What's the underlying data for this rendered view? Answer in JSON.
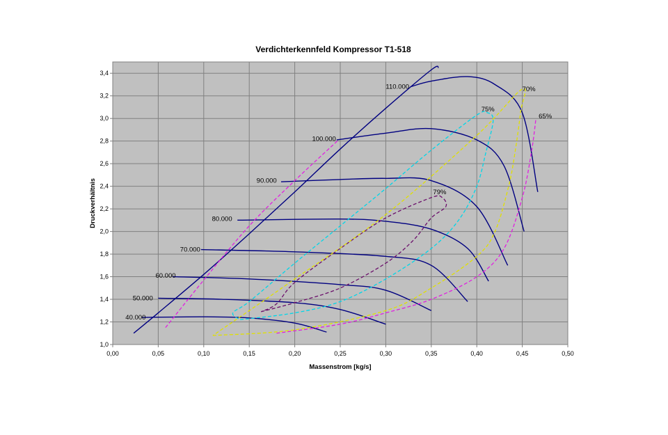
{
  "chart_data": {
    "type": "line",
    "title": "Verdichterkennfeld Kompressor T1-518",
    "xlabel": "Massenstrom [kg/s]",
    "ylabel": "Druckverhältnis",
    "xlim": [
      0.0,
      0.5
    ],
    "ylim": [
      1.0,
      3.5
    ],
    "x_ticks": [
      "0,00",
      "0,05",
      "0,10",
      "0,15",
      "0,20",
      "0,25",
      "0,30",
      "0,35",
      "0,40",
      "0,45",
      "0,50"
    ],
    "y_ticks": [
      "1,0",
      "1,2",
      "1,4",
      "1,6",
      "1,8",
      "2,0",
      "2,2",
      "2,4",
      "2,6",
      "2,8",
      "3,0",
      "3,2",
      "3,4"
    ],
    "grid": true,
    "background_color": "#c0c0c0",
    "speed_line_color": "#000080",
    "surge_line": {
      "points": [
        [
          0.023,
          1.1
        ],
        [
          0.05,
          1.28
        ],
        [
          0.1,
          1.62
        ],
        [
          0.15,
          1.98
        ],
        [
          0.2,
          2.35
        ],
        [
          0.25,
          2.73
        ],
        [
          0.3,
          3.09
        ],
        [
          0.35,
          3.43
        ],
        [
          0.358,
          3.45
        ]
      ]
    },
    "speed_lines": [
      {
        "label": "40.000",
        "label_at": [
          0.014,
          1.24
        ],
        "points": [
          [
            0.032,
            1.24
          ],
          [
            0.1,
            1.245
          ],
          [
            0.15,
            1.235
          ],
          [
            0.2,
            1.19
          ],
          [
            0.235,
            1.11
          ]
        ]
      },
      {
        "label": "50.000",
        "label_at": [
          0.022,
          1.41
        ],
        "points": [
          [
            0.05,
            1.41
          ],
          [
            0.12,
            1.4
          ],
          [
            0.2,
            1.37
          ],
          [
            0.25,
            1.31
          ],
          [
            0.3,
            1.18
          ]
        ]
      },
      {
        "label": "60.000",
        "label_at": [
          0.047,
          1.61
        ],
        "points": [
          [
            0.066,
            1.6
          ],
          [
            0.15,
            1.58
          ],
          [
            0.25,
            1.53
          ],
          [
            0.3,
            1.48
          ],
          [
            0.35,
            1.3
          ]
        ]
      },
      {
        "label": "70.000",
        "label_at": [
          0.074,
          1.84
        ],
        "points": [
          [
            0.097,
            1.84
          ],
          [
            0.2,
            1.82
          ],
          [
            0.3,
            1.78
          ],
          [
            0.35,
            1.7
          ],
          [
            0.39,
            1.38
          ]
        ]
      },
      {
        "label": "80.000",
        "label_at": [
          0.109,
          2.11
        ],
        "points": [
          [
            0.137,
            2.1
          ],
          [
            0.25,
            2.11
          ],
          [
            0.3,
            2.09
          ],
          [
            0.35,
            2.02
          ],
          [
            0.39,
            1.85
          ],
          [
            0.413,
            1.56
          ]
        ]
      },
      {
        "label": "90.000",
        "label_at": [
          0.158,
          2.45
        ],
        "points": [
          [
            0.185,
            2.44
          ],
          [
            0.25,
            2.46
          ],
          [
            0.3,
            2.47
          ],
          [
            0.35,
            2.45
          ],
          [
            0.4,
            2.22
          ],
          [
            0.434,
            1.7
          ]
        ]
      },
      {
        "label": "100.000",
        "label_at": [
          0.219,
          2.82
        ],
        "points": [
          [
            0.246,
            2.81
          ],
          [
            0.3,
            2.87
          ],
          [
            0.35,
            2.91
          ],
          [
            0.4,
            2.81
          ],
          [
            0.43,
            2.58
          ],
          [
            0.452,
            2.0
          ]
        ]
      },
      {
        "label": "110.000",
        "label_at": [
          0.3,
          3.28
        ],
        "points": [
          [
            0.327,
            3.28
          ],
          [
            0.35,
            3.33
          ],
          [
            0.39,
            3.37
          ],
          [
            0.42,
            3.3
          ],
          [
            0.45,
            3.05
          ],
          [
            0.467,
            2.35
          ]
        ]
      }
    ],
    "efficiency_contours": [
      {
        "label": "79%",
        "label_at": [
          0.352,
          2.35
        ],
        "color": "#6b0f6b",
        "points": [
          [
            0.163,
            1.29
          ],
          [
            0.2,
            1.37
          ],
          [
            0.25,
            1.5
          ],
          [
            0.3,
            1.72
          ],
          [
            0.33,
            1.92
          ],
          [
            0.35,
            2.12
          ],
          [
            0.366,
            2.22
          ],
          [
            0.362,
            2.3
          ],
          [
            0.35,
            2.3
          ],
          [
            0.3,
            2.12
          ],
          [
            0.25,
            1.85
          ],
          [
            0.2,
            1.55
          ],
          [
            0.18,
            1.36
          ],
          [
            0.163,
            1.29
          ]
        ]
      },
      {
        "label": "75%",
        "label_at": [
          0.405,
          3.08
        ],
        "color": "#00d6e8",
        "points": [
          [
            0.14,
            1.22
          ],
          [
            0.2,
            1.28
          ],
          [
            0.25,
            1.38
          ],
          [
            0.3,
            1.58
          ],
          [
            0.35,
            1.85
          ],
          [
            0.38,
            2.1
          ],
          [
            0.4,
            2.4
          ],
          [
            0.41,
            2.7
          ],
          [
            0.418,
            2.98
          ],
          [
            0.412,
            3.05
          ],
          [
            0.4,
            3.03
          ],
          [
            0.35,
            2.72
          ],
          [
            0.3,
            2.38
          ],
          [
            0.25,
            2.05
          ],
          [
            0.2,
            1.72
          ],
          [
            0.15,
            1.38
          ],
          [
            0.132,
            1.28
          ],
          [
            0.14,
            1.22
          ]
        ]
      },
      {
        "label": "70%",
        "label_at": [
          0.45,
          3.26
        ],
        "color": "#e0e000",
        "points": [
          [
            0.11,
            1.08
          ],
          [
            0.2,
            1.13
          ],
          [
            0.3,
            1.3
          ],
          [
            0.35,
            1.5
          ],
          [
            0.4,
            1.78
          ],
          [
            0.42,
            2.0
          ],
          [
            0.435,
            2.4
          ],
          [
            0.442,
            2.7
          ],
          [
            0.448,
            3.05
          ],
          [
            0.45,
            3.26
          ],
          [
            0.4,
            2.85
          ],
          [
            0.3,
            2.15
          ],
          [
            0.2,
            1.58
          ],
          [
            0.15,
            1.3
          ],
          [
            0.11,
            1.08
          ]
        ]
      },
      {
        "label": "65%",
        "label_at": [
          0.468,
          3.02
        ],
        "color": "#e020e0",
        "points": [
          [
            0.058,
            1.15
          ],
          [
            0.1,
            1.57
          ],
          [
            0.15,
            2.05
          ],
          [
            0.2,
            2.45
          ],
          [
            0.244,
            2.78
          ],
          [
            0.244,
            2.78
          ]
        ],
        "right_branch": [
          [
            0.18,
            1.1
          ],
          [
            0.25,
            1.18
          ],
          [
            0.3,
            1.28
          ],
          [
            0.35,
            1.4
          ],
          [
            0.4,
            1.6
          ],
          [
            0.43,
            1.85
          ],
          [
            0.45,
            2.3
          ],
          [
            0.46,
            2.7
          ],
          [
            0.465,
            3.0
          ]
        ]
      }
    ]
  }
}
